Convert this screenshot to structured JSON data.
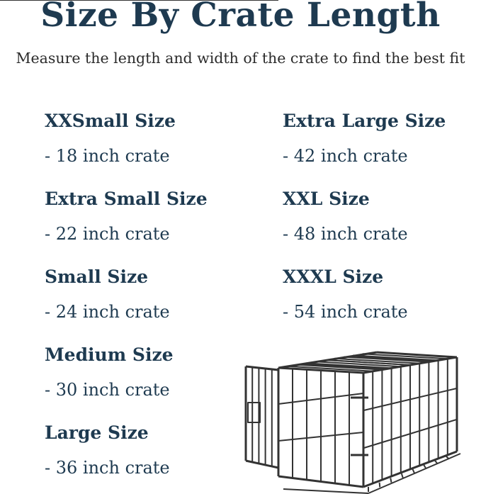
{
  "title": "Size By Crate Length",
  "subtitle": "Measure the length and width of the crate to find the best fit",
  "sizes_left": [
    {
      "name": "XXSmall Size",
      "length": "- 18 inch crate"
    },
    {
      "name": "Extra Small Size",
      "length": "- 22 inch crate"
    },
    {
      "name": "Small Size",
      "length": "- 24 inch crate"
    },
    {
      "name": "Medium Size",
      "length": "- 30 inch crate"
    },
    {
      "name": "Large Size",
      "length": "- 36 inch crate"
    }
  ],
  "sizes_right": [
    {
      "name": "Extra Large Size",
      "length": "- 42 inch crate"
    },
    {
      "name": "XXL Size",
      "length": "- 48 inch crate"
    },
    {
      "name": "XXXL Size",
      "length": "- 54 inch crate"
    }
  ],
  "colors": {
    "heading": "#1e3a50",
    "crate": "#333333"
  },
  "image": {
    "icon": "wire-dog-crate-illustration"
  }
}
